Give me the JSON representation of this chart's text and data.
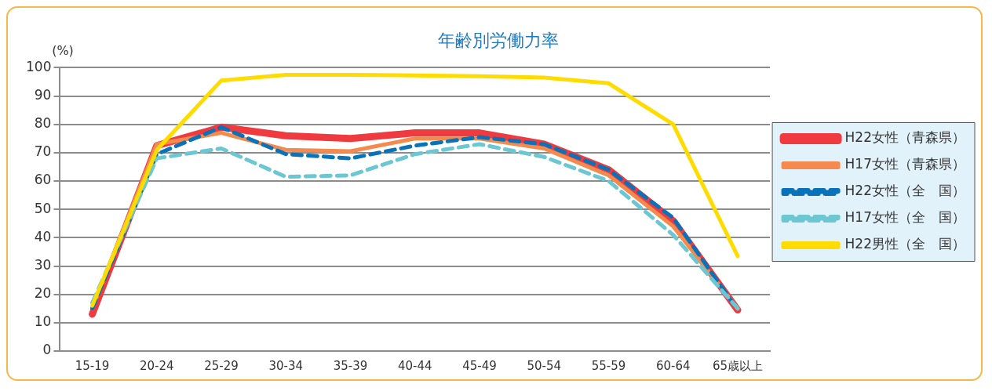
{
  "chart_data": {
    "type": "line",
    "title": "年齢別労働力率",
    "ylabel": "(%)",
    "categories": [
      "15-19",
      "20-24",
      "25-29",
      "30-34",
      "35-39",
      "40-44",
      "45-49",
      "50-54",
      "55-59",
      "60-64",
      "65歳以上"
    ],
    "series": [
      {
        "name": "H22女性（青森県）",
        "color": "#ef3b3f",
        "line_style": "solid",
        "values": [
          13,
          72.5,
          79,
          76,
          75,
          77,
          77,
          73,
          64,
          46,
          14.5
        ]
      },
      {
        "name": "H17女性（青森県）",
        "color": "#f58a4e",
        "line_style": "solid",
        "values": [
          15,
          73,
          77,
          71,
          70.5,
          75,
          75,
          71.5,
          62,
          44,
          15
        ]
      },
      {
        "name": "H22女性（全　国）",
        "color": "#0a72b8",
        "line_style": "dashed",
        "values": [
          15,
          69.5,
          79,
          69.5,
          68,
          72.5,
          75.5,
          73,
          64,
          47,
          14.5
        ]
      },
      {
        "name": "H17女性（全　国）",
        "color": "#6cc7d2",
        "line_style": "dashed",
        "values": [
          17,
          68,
          71.5,
          61.5,
          62,
          69.5,
          73,
          68.5,
          60,
          41,
          15
        ]
      },
      {
        "name": "H22男性（全　国）",
        "color": "#ffdc00",
        "line_style": "solid",
        "values": [
          16,
          71,
          95.5,
          97.5,
          97.5,
          97.3,
          97,
          96.5,
          94.5,
          80,
          33.5
        ]
      }
    ],
    "ylim": [
      0,
      100
    ],
    "yticks": [
      0,
      10,
      20,
      30,
      40,
      50,
      60,
      70,
      80,
      90,
      100
    ],
    "grid": "y",
    "legend": "right",
    "marker": "none"
  }
}
